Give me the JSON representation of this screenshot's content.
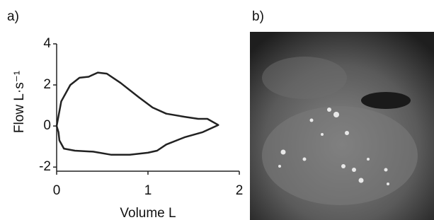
{
  "chart_data": {
    "type": "line",
    "panel_label": "a)",
    "x_label": "Volume L",
    "y_label": "Flow L·s⁻¹",
    "color": "#222222",
    "xlim": [
      0,
      2
    ],
    "xticks": [
      0,
      1,
      2
    ],
    "ylim": [
      -2.2,
      4
    ],
    "yticks": [
      -2,
      0,
      2,
      4
    ],
    "series": [
      {
        "x": [
          0.0,
          0.05,
          0.15,
          0.25,
          0.35,
          0.45,
          0.55,
          0.7,
          0.9,
          1.05,
          1.2,
          1.4,
          1.55,
          1.65,
          1.77,
          1.6,
          1.4,
          1.2,
          1.1,
          1.0,
          0.8,
          0.6,
          0.4,
          0.2,
          0.08,
          0.03,
          0.02,
          0.0
        ],
        "y": [
          0.0,
          1.2,
          2.0,
          2.35,
          2.4,
          2.6,
          2.55,
          2.1,
          1.4,
          0.9,
          0.6,
          0.45,
          0.35,
          0.35,
          0.05,
          -0.3,
          -0.55,
          -0.9,
          -1.2,
          -1.3,
          -1.4,
          -1.4,
          -1.25,
          -1.2,
          -1.1,
          -0.7,
          -0.3,
          0.0
        ]
      }
    ]
  },
  "image_panel": {
    "label": "b)"
  }
}
